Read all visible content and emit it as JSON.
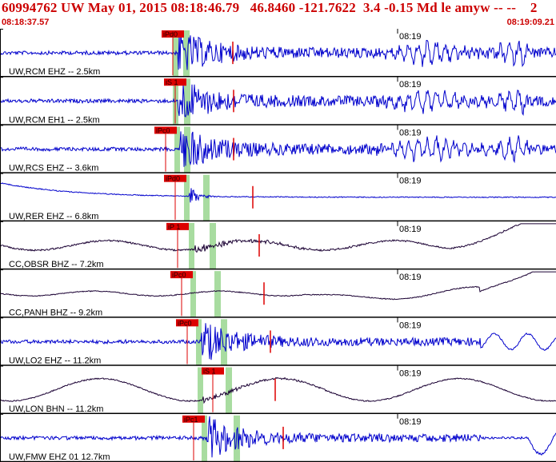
{
  "header": {
    "title": "60994762 UW May 01, 2015 08:18:46.79   46.8460 -121.7622  3.4 -0.15 Md le amyw -- --    2",
    "start_time": "08:18:37.57",
    "end_time": "08:19:09.21"
  },
  "colors": {
    "waveform_blue": "#0000cc",
    "waveform_dark": "#1a0033",
    "pick": "#dd0000",
    "window_green": "#a8dca0",
    "header_red": "#cc0000"
  },
  "tick_label": "08:19",
  "traces": [
    {
      "label": "UW,RCM EHZ -- 2.5km",
      "pick": "iPd0",
      "style": "blue",
      "kind": "hf",
      "late": true
    },
    {
      "label": "UW,RCM EH1 -- 2.5km",
      "pick": "iS 1",
      "style": "blue",
      "kind": "hf",
      "late": true
    },
    {
      "label": "UW,RCS EHZ -- 3.6km",
      "pick": "iPc0",
      "style": "blue",
      "kind": "hf",
      "late": true
    },
    {
      "label": "UW,RER EHZ -- 6.8km",
      "pick": "iPd0",
      "style": "blue",
      "kind": "decay",
      "late": false
    },
    {
      "label": "CC,OBSR BHZ -- 7.2km",
      "pick": "iP 1",
      "style": "dark",
      "kind": "lp",
      "late": false
    },
    {
      "label": "CC,PANH BHZ -- 9.2km",
      "pick": "iPc0",
      "style": "dark",
      "kind": "lp2",
      "late": false
    },
    {
      "label": "UW,LO2 EHZ -- 11.2km",
      "pick": "iPc0",
      "style": "blue",
      "kind": "hf2",
      "late": false
    },
    {
      "label": "UW,LON BHN -- 11.2km",
      "pick": "iS 1",
      "style": "dark",
      "kind": "wave",
      "late": false
    },
    {
      "label": "UW,FMW EHZ 01 12.7km",
      "pick": "iPc1",
      "style": "blue",
      "kind": "hf3",
      "late": false
    }
  ]
}
